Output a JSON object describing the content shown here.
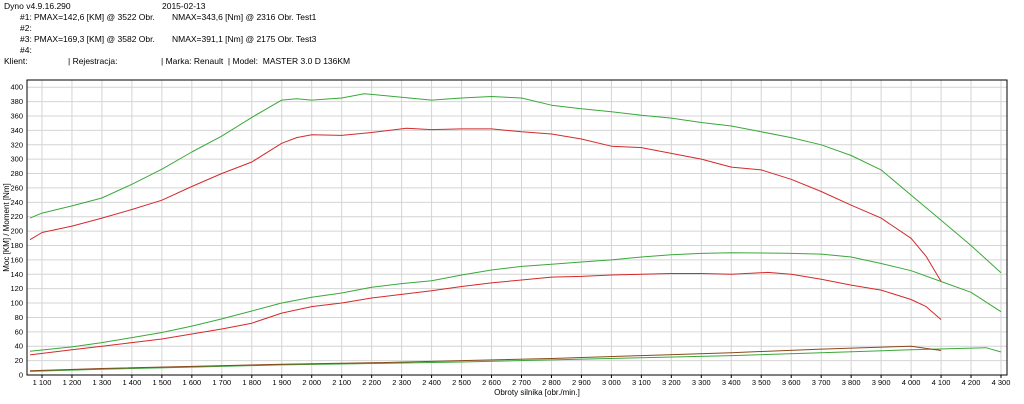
{
  "header": {
    "app": "Dyno v4.9.16.290",
    "date": "2015-02-13",
    "run1_id": "#1:",
    "run1_pmax": "PMAX=142,6 [KM] @ 3522 Obr.",
    "run1_nmax": "NMAX=343,6 [Nm] @ 2316 Obr.",
    "run1_name": "Test1",
    "run2_id": "#2:",
    "run3_id": "#3:",
    "run3_pmax": "PMAX=169,3 [KM] @ 3582 Obr.",
    "run3_nmax": "NMAX=391,1 [Nm] @ 2175 Obr.",
    "run3_name": "Test3",
    "run4_id": "#4:",
    "client_label": "Klient:",
    "registration_label": "| Rejestracja:",
    "make_model": "| Marka: Renault  | Model:  MASTER 3.0 D 136KM"
  },
  "chart_data": {
    "type": "line",
    "xlabel": "Obroty silnika [obr./min.]",
    "ylabel": "Moc [KM] / Moment [Nm]",
    "xlim": [
      1050,
      4320
    ],
    "ylim": [
      0,
      410
    ],
    "x_ticks": [
      "1 100",
      "1 200",
      "1 300",
      "1 400",
      "1 500",
      "1 600",
      "1 700",
      "1 800",
      "1 900",
      "2 000",
      "2 100",
      "2 200",
      "2 300",
      "2 400",
      "2 500",
      "2 600",
      "2 700",
      "2 800",
      "2 900",
      "3 000",
      "3 100",
      "3 200",
      "3 300",
      "3 400",
      "3 500",
      "3 600",
      "3 700",
      "3 800",
      "3 900",
      "4 000",
      "4 100",
      "4 200",
      "4 300"
    ],
    "y_ticks": [
      "0",
      "20",
      "40",
      "60",
      "80",
      "100",
      "120",
      "140",
      "160",
      "180",
      "200",
      "220",
      "240",
      "260",
      "280",
      "300",
      "320",
      "340",
      "360",
      "380",
      "400"
    ],
    "grid": true,
    "series": [
      {
        "name": "Test3",
        "metric": "torque",
        "color": "#3aa83a",
        "x": [
          1060,
          1100,
          1200,
          1300,
          1400,
          1500,
          1600,
          1700,
          1800,
          1900,
          1950,
          2000,
          2100,
          2175,
          2200,
          2300,
          2400,
          2500,
          2600,
          2700,
          2800,
          2900,
          3000,
          3100,
          3200,
          3300,
          3400,
          3500,
          3600,
          3700,
          3800,
          3900,
          4000,
          4100,
          4200,
          4300
        ],
        "y": [
          218,
          225,
          235,
          246,
          265,
          286,
          310,
          332,
          358,
          382,
          384,
          382,
          385,
          391,
          390,
          386,
          382,
          385,
          387,
          385,
          375,
          370,
          366,
          361,
          357,
          351,
          346,
          338,
          330,
          320,
          305,
          285,
          250,
          215,
          180,
          142
        ]
      },
      {
        "name": "Test1",
        "metric": "torque",
        "color": "#d42a2a",
        "x": [
          1060,
          1100,
          1200,
          1300,
          1400,
          1500,
          1600,
          1700,
          1800,
          1900,
          1950,
          2000,
          2100,
          2200,
          2316,
          2400,
          2500,
          2600,
          2700,
          2800,
          2900,
          3000,
          3100,
          3200,
          3300,
          3400,
          3500,
          3600,
          3700,
          3800,
          3900,
          4000,
          4050,
          4100
        ],
        "y": [
          188,
          198,
          207,
          218,
          230,
          243,
          262,
          280,
          296,
          322,
          330,
          334,
          333,
          337,
          343,
          341,
          342,
          342,
          338,
          335,
          328,
          318,
          316,
          308,
          300,
          289,
          285,
          272,
          255,
          236,
          218,
          190,
          165,
          130
        ]
      },
      {
        "name": "Test3",
        "metric": "power",
        "color": "#3aa83a",
        "x": [
          1060,
          1200,
          1300,
          1400,
          1500,
          1600,
          1700,
          1800,
          1900,
          2000,
          2100,
          2200,
          2300,
          2400,
          2500,
          2600,
          2700,
          2800,
          2900,
          3000,
          3100,
          3200,
          3300,
          3400,
          3582,
          3700,
          3800,
          3900,
          4000,
          4100,
          4200,
          4300
        ],
        "y": [
          33,
          39,
          45,
          52,
          59,
          68,
          78,
          89,
          100,
          108,
          114,
          122,
          127,
          131,
          139,
          146,
          151,
          154,
          157,
          160,
          164,
          167,
          169,
          170,
          169.3,
          168,
          164,
          155,
          145,
          130,
          115,
          88
        ]
      },
      {
        "name": "Test1",
        "metric": "power",
        "color": "#d42a2a",
        "x": [
          1060,
          1200,
          1300,
          1400,
          1500,
          1600,
          1700,
          1800,
          1900,
          2000,
          2100,
          2200,
          2300,
          2400,
          2500,
          2600,
          2700,
          2800,
          2900,
          3000,
          3100,
          3200,
          3300,
          3400,
          3522,
          3600,
          3700,
          3800,
          3900,
          4000,
          4050,
          4100
        ],
        "y": [
          28,
          35,
          40,
          45,
          50,
          57,
          64,
          72,
          86,
          95,
          100,
          107,
          112,
          117,
          123,
          128,
          132,
          136,
          137,
          139,
          140,
          141,
          141,
          140,
          142.6,
          140,
          133,
          125,
          118,
          105,
          95,
          77
        ]
      },
      {
        "name": "Test3",
        "metric": "loss",
        "color": "#3aa83a",
        "x": [
          1060,
          1300,
          1600,
          1900,
          2200,
          2500,
          2800,
          3100,
          3400,
          3700,
          4000,
          4250,
          4300
        ],
        "y": [
          5,
          8,
          11,
          14,
          16,
          18,
          21,
          24,
          27,
          31,
          35,
          38,
          32
        ]
      },
      {
        "name": "Test1",
        "metric": "loss",
        "color": "#8a4a1a",
        "x": [
          1060,
          1300,
          1600,
          1900,
          2200,
          2500,
          2800,
          3100,
          3400,
          3700,
          4000,
          4100
        ],
        "y": [
          6,
          9,
          12,
          15,
          17,
          20,
          23,
          27,
          31,
          36,
          40,
          34
        ]
      }
    ]
  }
}
